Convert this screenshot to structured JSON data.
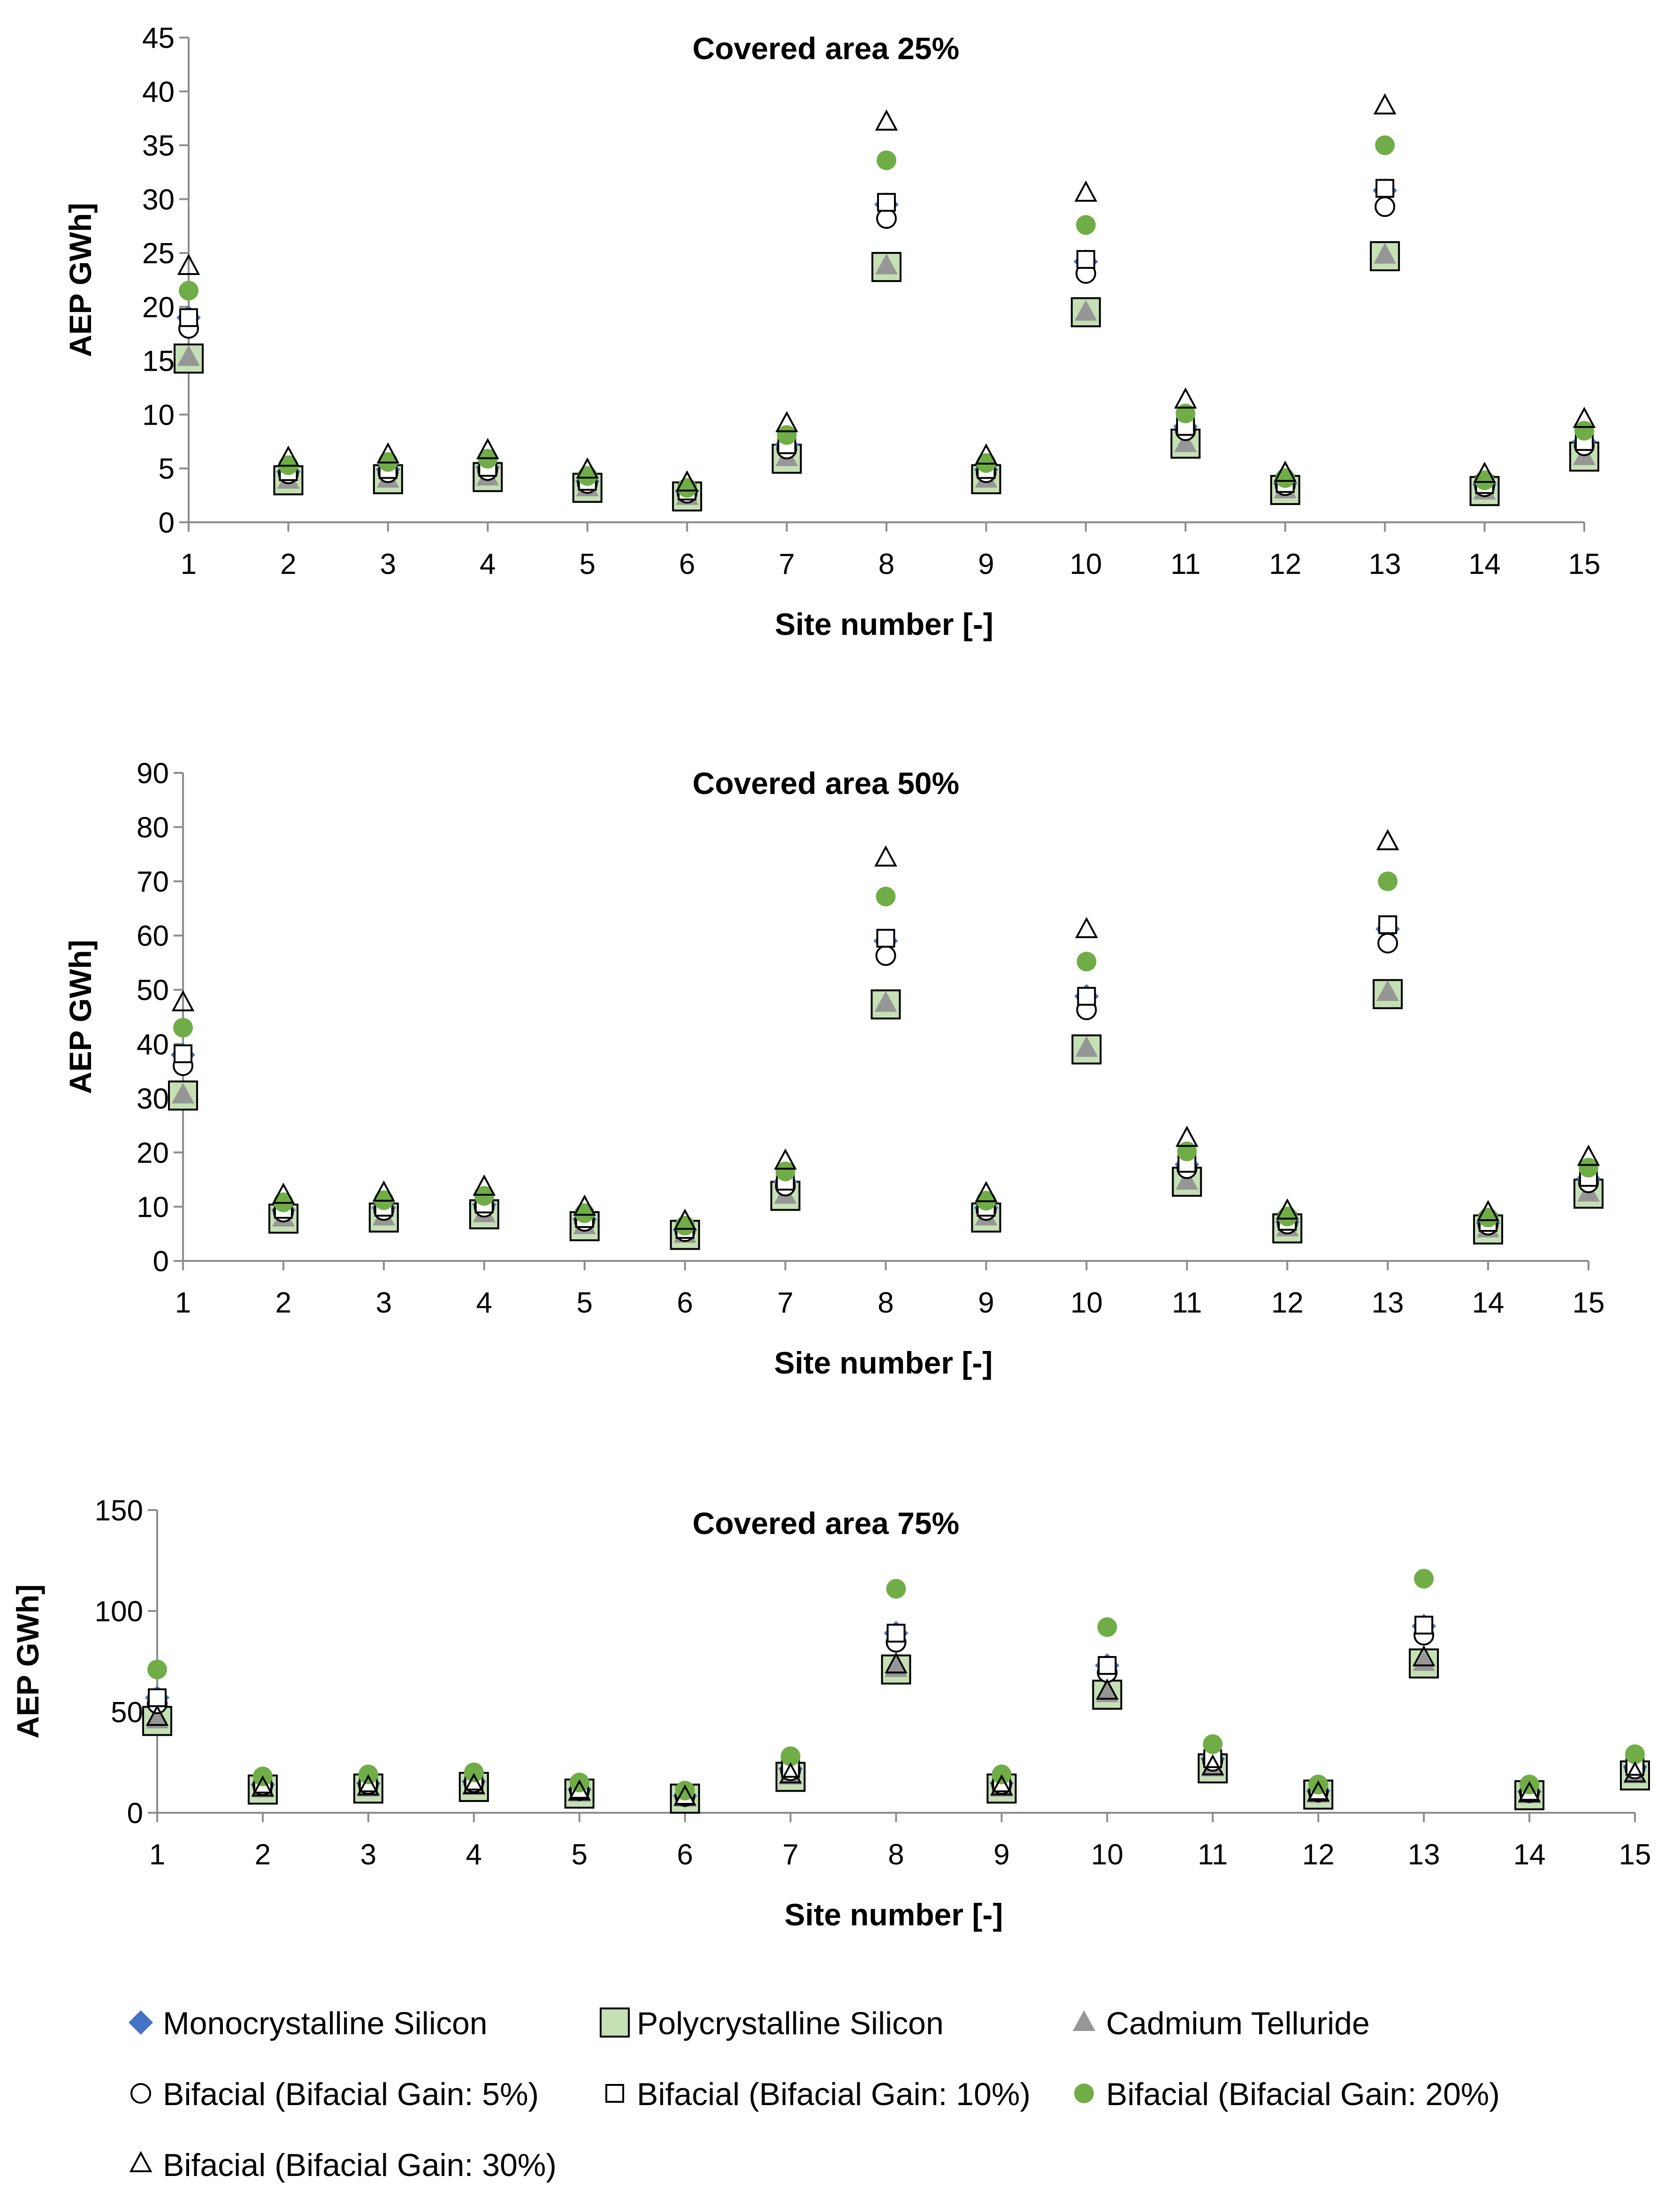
{
  "chart_data": [
    {
      "type": "scatter",
      "title": "Covered area 25%",
      "xlabel": "Site number [-]",
      "ylabel": "AEP GWh]",
      "xlim": [
        1,
        15
      ],
      "ylim": [
        0,
        45
      ],
      "ytick_step": 5,
      "x": [
        1,
        2,
        3,
        4,
        5,
        6,
        7,
        8,
        9,
        10,
        11,
        12,
        13,
        14,
        15
      ],
      "x_tick_labels": [
        "1",
        "2",
        "3",
        "4",
        "5",
        "6",
        "7",
        "8",
        "9",
        "10",
        "11",
        "12",
        "13",
        "14",
        "15"
      ],
      "y_tick_labels": [
        "0",
        "5",
        "10",
        "15",
        "20",
        "25",
        "30",
        "35",
        "40",
        "45"
      ],
      "series": [
        {
          "name": "Monocrystalline Silicon",
          "values": [
            19.0,
            4.7,
            4.9,
            5.1,
            3.8,
            2.9,
            7.2,
            29.5,
            4.9,
            24.2,
            8.9,
            3.6,
            30.8,
            3.5,
            7.5
          ]
        },
        {
          "name": "Polycrystalline Silicon",
          "values": [
            15.2,
            3.9,
            4.0,
            4.2,
            3.2,
            2.4,
            5.9,
            23.7,
            4.0,
            19.5,
            7.3,
            3.0,
            24.7,
            2.9,
            6.1
          ]
        },
        {
          "name": "Cadmium Telluride",
          "values": [
            15.3,
            3.9,
            4.0,
            4.2,
            3.2,
            2.4,
            6.0,
            23.8,
            4.0,
            19.5,
            7.3,
            3.0,
            24.8,
            2.9,
            6.1
          ]
        },
        {
          "name": "Bifacial (Bifacial Gain: 5%)",
          "values": [
            18.0,
            4.5,
            4.6,
            4.8,
            3.6,
            2.7,
            6.8,
            28.2,
            4.6,
            23.1,
            8.5,
            3.4,
            29.3,
            3.3,
            7.1
          ]
        },
        {
          "name": "Bifacial (Bifacial Gain: 10%)",
          "values": [
            19.0,
            4.7,
            4.9,
            5.1,
            3.8,
            2.9,
            7.2,
            29.7,
            4.9,
            24.4,
            8.9,
            3.6,
            31.0,
            3.5,
            7.5
          ]
        },
        {
          "name": "Bifacial (Bifacial Gain: 20%)",
          "values": [
            21.5,
            5.3,
            5.6,
            5.9,
            4.3,
            3.2,
            8.1,
            33.6,
            5.5,
            27.6,
            10.1,
            4.1,
            35.0,
            3.9,
            8.5
          ]
        },
        {
          "name": "Bifacial (Bifacial Gain: 30%)",
          "values": [
            23.7,
            5.9,
            6.2,
            6.6,
            4.8,
            3.6,
            9.1,
            37.1,
            6.1,
            30.5,
            11.3,
            4.5,
            38.6,
            4.4,
            9.5
          ]
        }
      ]
    },
    {
      "type": "scatter",
      "title": "Covered area 50%",
      "xlabel": "Site number [-]",
      "ylabel": "AEP GWh]",
      "xlim": [
        1,
        15
      ],
      "ylim": [
        0,
        90
      ],
      "ytick_step": 10,
      "x": [
        1,
        2,
        3,
        4,
        5,
        6,
        7,
        8,
        9,
        10,
        11,
        12,
        13,
        14,
        15
      ],
      "x_tick_labels": [
        "1",
        "2",
        "3",
        "4",
        "5",
        "6",
        "7",
        "8",
        "9",
        "10",
        "11",
        "12",
        "13",
        "14",
        "15"
      ],
      "y_tick_labels": [
        "0",
        "10",
        "20",
        "30",
        "40",
        "50",
        "60",
        "70",
        "80",
        "90"
      ],
      "series": [
        {
          "name": "Monocrystalline Silicon",
          "values": [
            38.0,
            9.4,
            9.8,
            10.4,
            7.7,
            5.7,
            14.6,
            59.0,
            9.8,
            48.8,
            17.8,
            7.2,
            61.2,
            7.0,
            15.2
          ]
        },
        {
          "name": "Polycrystalline Silicon",
          "values": [
            30.5,
            7.8,
            8.0,
            8.6,
            6.4,
            4.8,
            12.0,
            47.3,
            8.0,
            39.0,
            14.6,
            6.0,
            49.2,
            5.8,
            12.4
          ]
        },
        {
          "name": "Cadmium Telluride",
          "values": [
            30.6,
            7.9,
            8.1,
            8.7,
            6.5,
            4.9,
            12.1,
            47.5,
            8.1,
            39.2,
            14.7,
            6.1,
            49.5,
            5.9,
            12.5
          ]
        },
        {
          "name": "Bifacial (Bifacial Gain: 5%)",
          "values": [
            36.0,
            9.0,
            9.3,
            9.9,
            7.3,
            5.4,
            13.8,
            56.3,
            9.3,
            46.3,
            17.0,
            6.8,
            58.6,
            6.6,
            14.4
          ]
        },
        {
          "name": "Bifacial (Bifacial Gain: 10%)",
          "values": [
            38.2,
            9.5,
            9.9,
            10.5,
            7.8,
            5.8,
            14.7,
            59.5,
            9.9,
            48.8,
            18.0,
            7.3,
            62.0,
            7.1,
            15.4
          ]
        },
        {
          "name": "Bifacial (Bifacial Gain: 20%)",
          "values": [
            43.0,
            10.8,
            11.2,
            12.0,
            8.8,
            6.5,
            16.5,
            67.2,
            11.1,
            55.2,
            20.2,
            8.2,
            70.0,
            8.0,
            17.2
          ]
        },
        {
          "name": "Bifacial (Bifacial Gain: 30%)",
          "values": [
            47.5,
            12.0,
            12.4,
            13.5,
            9.8,
            7.2,
            18.3,
            74.2,
            12.3,
            61.0,
            22.5,
            9.1,
            77.2,
            8.8,
            19.0
          ]
        }
      ]
    },
    {
      "type": "scatter",
      "title": "Covered area 75%",
      "xlabel": "Site number [-]",
      "ylabel": "AEP GWh]",
      "xlim": [
        1,
        15
      ],
      "ylim": [
        0,
        150
      ],
      "ytick_step": 50,
      "x": [
        1,
        2,
        3,
        4,
        5,
        6,
        7,
        8,
        9,
        10,
        11,
        12,
        13,
        14,
        15
      ],
      "x_tick_labels": [
        "1",
        "2",
        "3",
        "4",
        "5",
        "6",
        "7",
        "8",
        "9",
        "10",
        "11",
        "12",
        "13",
        "14",
        "15"
      ],
      "y_tick_labels": [
        "0",
        "50",
        "100",
        "150"
      ],
      "series": [
        {
          "name": "Monocrystalline Silicon",
          "values": [
            57.0,
            14.0,
            14.6,
            15.5,
            11.5,
            8.5,
            21.8,
            89.0,
            14.7,
            73.0,
            26.7,
            10.8,
            92.5,
            10.5,
            22.8
          ]
        },
        {
          "name": "Polycrystalline Silicon",
          "values": [
            45.5,
            11.5,
            12.0,
            12.8,
            9.5,
            7.0,
            17.8,
            71.0,
            12.0,
            58.5,
            22.0,
            9.0,
            74.0,
            8.7,
            18.5
          ]
        },
        {
          "name": "Cadmium Telluride",
          "values": [
            46.0,
            11.8,
            12.2,
            13.0,
            9.7,
            7.2,
            18.2,
            71.5,
            12.2,
            59.0,
            22.2,
            9.2,
            74.5,
            8.9,
            18.8
          ]
        },
        {
          "name": "Bifacial (Bifacial Gain: 5%)",
          "values": [
            54.0,
            13.5,
            14.0,
            14.9,
            11.0,
            8.1,
            20.8,
            84.5,
            14.0,
            69.5,
            25.5,
            10.3,
            88.0,
            10.0,
            21.7
          ]
        },
        {
          "name": "Bifacial (Bifacial Gain: 10%)",
          "values": [
            57.0,
            14.2,
            14.8,
            15.7,
            11.6,
            8.6,
            22.0,
            89.0,
            14.8,
            73.0,
            26.8,
            10.9,
            93.0,
            10.6,
            23.0
          ]
        },
        {
          "name": "Bifacial (Bifacial Gain: 20%)",
          "values": [
            71.0,
            18.0,
            19.0,
            20.0,
            15.0,
            11.0,
            28.0,
            111.0,
            19.0,
            92.0,
            34.0,
            14.0,
            116.0,
            14.0,
            29.0
          ]
        },
        {
          "name": "Bifacial (Bifacial Gain: 30%)",
          "values": [
            47.0,
            12.0,
            12.5,
            13.2,
            10.0,
            7.5,
            18.5,
            73.0,
            12.5,
            60.0,
            22.5,
            9.5,
            76.5,
            9.2,
            19.0
          ]
        }
      ]
    }
  ],
  "legend": {
    "items": [
      {
        "label": "Monocrystalline Silicon",
        "marker": "diamond"
      },
      {
        "label": "Polycrystalline Silicon",
        "marker": "square-filled"
      },
      {
        "label": "Cadmium Telluride",
        "marker": "triangle-filled"
      },
      {
        "label": "Bifacial (Bifacial Gain: 5%)",
        "marker": "circle-open"
      },
      {
        "label": "Bifacial (Bifacial Gain: 10%)",
        "marker": "square-open"
      },
      {
        "label": "Bifacial (Bifacial Gain: 20%)",
        "marker": "circle-filled"
      },
      {
        "label": "Bifacial (Bifacial Gain: 30%)",
        "marker": "triangle-open"
      }
    ]
  },
  "colors": {
    "monocrystalline": "#4472c4",
    "polycrystalline_fill": "#c5e0b4",
    "cadmium_telluride": "#969696",
    "bifacial_20": "#70ad47",
    "axis": "#8c8c8c",
    "text": "#000000"
  }
}
